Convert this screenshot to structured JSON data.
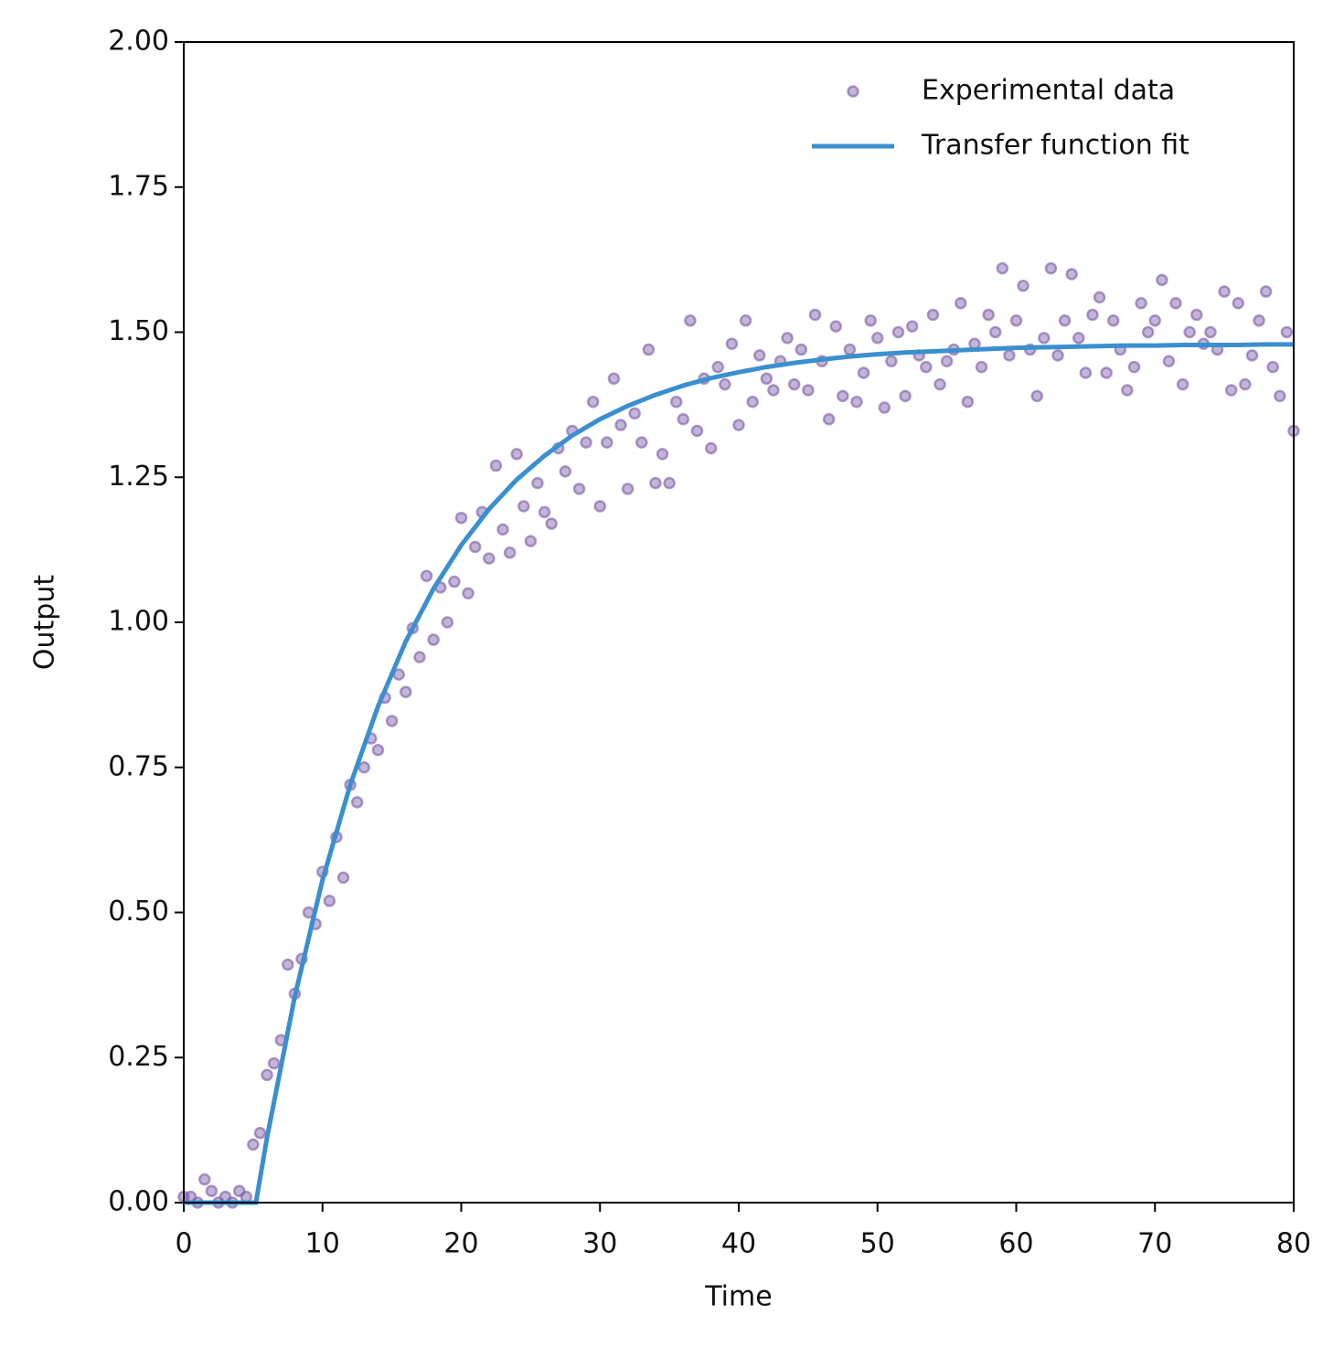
{
  "chart_data": {
    "type": "scatter",
    "xlabel": "Time",
    "ylabel": "Output",
    "xlim": [
      0,
      80
    ],
    "xticks": [
      0,
      10,
      20,
      30,
      40,
      50,
      60,
      70,
      80
    ],
    "ylim": [
      0,
      2
    ],
    "yticks": [
      {
        "value": 0,
        "label": "0.00"
      },
      {
        "value": 0.25,
        "label": "0.25"
      },
      {
        "value": 0.5,
        "label": "0.50"
      },
      {
        "value": 0.75,
        "label": "0.75"
      },
      {
        "value": 1,
        "label": "1.00"
      },
      {
        "value": 1.25,
        "label": "1.25"
      },
      {
        "value": 1.5,
        "label": "1.50"
      },
      {
        "value": 1.75,
        "label": "1.75"
      },
      {
        "value": 2,
        "label": "2.00"
      }
    ],
    "legend": "upper right",
    "series": [
      {
        "name": "Experimental data",
        "type": "scatter",
        "color": "#7b5aa6",
        "x": [
          0,
          0.5,
          1,
          1.5,
          2,
          2.5,
          3,
          3.5,
          4,
          4.5,
          5,
          5.5,
          6,
          6.5,
          7,
          7.5,
          8,
          8.5,
          9,
          9.5,
          10,
          10.5,
          11,
          11.5,
          12,
          12.5,
          13,
          13.5,
          14,
          14.5,
          15,
          15.5,
          16,
          16.5,
          17,
          17.5,
          18,
          18.5,
          19,
          19.5,
          20,
          20.5,
          21,
          21.5,
          22,
          22.5,
          23,
          23.5,
          24,
          24.5,
          25,
          25.5,
          26,
          26.5,
          27,
          27.5,
          28,
          28.5,
          29,
          29.5,
          30,
          30.5,
          31,
          31.5,
          32,
          32.5,
          33,
          33.5,
          34,
          34.5,
          35,
          35.5,
          36,
          36.5,
          37,
          37.5,
          38,
          38.5,
          39,
          39.5,
          40,
          40.5,
          41,
          41.5,
          42,
          42.5,
          43,
          43.5,
          44,
          44.5,
          45,
          45.5,
          46,
          46.5,
          47,
          47.5,
          48,
          48.5,
          49,
          49.5,
          50,
          50.5,
          51,
          51.5,
          52,
          52.5,
          53,
          53.5,
          54,
          54.5,
          55,
          55.5,
          56,
          56.5,
          57,
          57.5,
          58,
          58.5,
          59,
          59.5,
          60,
          60.5,
          61,
          61.5,
          62,
          62.5,
          63,
          63.5,
          64,
          64.5,
          65,
          65.5,
          66,
          66.5,
          67,
          67.5,
          68,
          68.5,
          69,
          69.5,
          70,
          70.5,
          71,
          71.5,
          72,
          72.5,
          73,
          73.5,
          74,
          74.5,
          75,
          75.5,
          76,
          76.5,
          77,
          77.5,
          78,
          78.5,
          79,
          79.5,
          80
        ],
        "values": [
          0.01,
          0.01,
          0.0,
          0.04,
          0.02,
          0.0,
          0.01,
          0.0,
          0.02,
          0.01,
          0.1,
          0.12,
          0.22,
          0.24,
          0.28,
          0.41,
          0.36,
          0.42,
          0.5,
          0.48,
          0.57,
          0.52,
          0.63,
          0.56,
          0.72,
          0.69,
          0.75,
          0.8,
          0.78,
          0.87,
          0.83,
          0.91,
          0.88,
          0.99,
          0.94,
          1.08,
          0.97,
          1.06,
          1.0,
          1.07,
          1.18,
          1.05,
          1.13,
          1.19,
          1.11,
          1.27,
          1.16,
          1.12,
          1.29,
          1.2,
          1.14,
          1.24,
          1.19,
          1.17,
          1.3,
          1.26,
          1.33,
          1.23,
          1.31,
          1.38,
          1.2,
          1.31,
          1.42,
          1.34,
          1.23,
          1.36,
          1.31,
          1.47,
          1.24,
          1.29,
          1.24,
          1.38,
          1.35,
          1.52,
          1.33,
          1.42,
          1.3,
          1.44,
          1.41,
          1.48,
          1.34,
          1.52,
          1.38,
          1.46,
          1.42,
          1.4,
          1.45,
          1.49,
          1.41,
          1.47,
          1.4,
          1.53,
          1.45,
          1.35,
          1.51,
          1.39,
          1.47,
          1.38,
          1.43,
          1.52,
          1.49,
          1.37,
          1.45,
          1.5,
          1.39,
          1.51,
          1.46,
          1.44,
          1.53,
          1.41,
          1.45,
          1.47,
          1.55,
          1.38,
          1.48,
          1.44,
          1.53,
          1.5,
          1.61,
          1.46,
          1.52,
          1.58,
          1.47,
          1.39,
          1.49,
          1.61,
          1.46,
          1.52,
          1.6,
          1.49,
          1.43,
          1.53,
          1.56,
          1.43,
          1.52,
          1.47,
          1.4,
          1.44,
          1.55,
          1.5,
          1.52,
          1.59,
          1.45,
          1.55,
          1.41,
          1.5,
          1.53,
          1.48,
          1.5,
          1.47,
          1.57,
          1.4,
          1.55,
          1.41,
          1.46,
          1.52,
          1.57,
          1.44,
          1.39,
          1.5,
          1.33
        ]
      },
      {
        "name": "Transfer function fit",
        "type": "line",
        "color": "#3a8fcf",
        "x": [
          0,
          5.2,
          6,
          8,
          10,
          12,
          14,
          16,
          18,
          20,
          22,
          24,
          26,
          28,
          30,
          32,
          34,
          36,
          38,
          40,
          42,
          44,
          46,
          48,
          50,
          52,
          54,
          56,
          58,
          60,
          62,
          64,
          66,
          68,
          70,
          72,
          74,
          76,
          78,
          80
        ],
        "values": [
          0,
          0,
          0.112,
          0.355,
          0.556,
          0.72,
          0.855,
          0.967,
          1.058,
          1.133,
          1.195,
          1.246,
          1.287,
          1.322,
          1.35,
          1.373,
          1.392,
          1.408,
          1.421,
          1.431,
          1.44,
          1.447,
          1.453,
          1.458,
          1.462,
          1.465,
          1.467,
          1.469,
          1.471,
          1.473,
          1.474,
          1.475,
          1.476,
          1.477,
          1.477,
          1.478,
          1.478,
          1.478,
          1.479,
          1.479
        ]
      }
    ]
  }
}
